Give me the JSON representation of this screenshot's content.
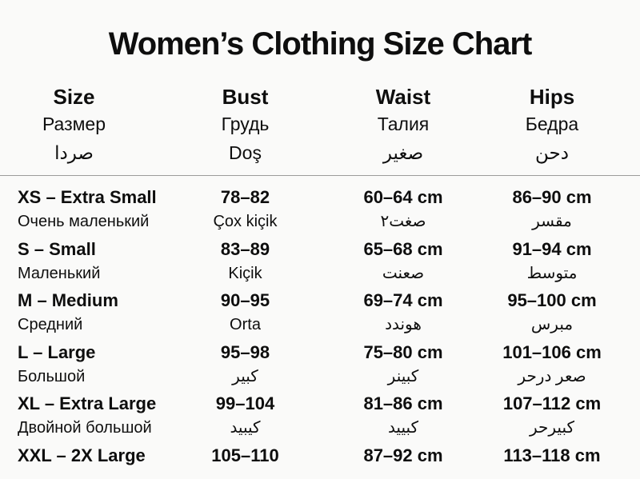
{
  "title": "Women’s Clothing Size Chart",
  "colors": {
    "background": "#fafaf9",
    "text": "#0e0e0e",
    "divider": "#9b9b9b"
  },
  "columns": [
    {
      "en": "Size",
      "ru": "Размер",
      "third": "صردا"
    },
    {
      "en": "Bust",
      "ru": "Грудь",
      "third": "Doş"
    },
    {
      "en": "Waist",
      "ru": "Талия",
      "third": "صغير"
    },
    {
      "en": "Hips",
      "ru": "Бедра",
      "third": "دحن"
    }
  ],
  "rows": [
    {
      "size": "XS – Extra Small",
      "size_sub": "Очень маленький",
      "bust": "78–82",
      "bust_sub": "Çox kiçik",
      "waist": "60–64 cm",
      "waist_sub": "صغت٢",
      "hips": "86–90 cm",
      "hips_sub": "مقسر"
    },
    {
      "size": "S – Small",
      "size_sub": "Маленький",
      "bust": "83–89",
      "bust_sub": "Kiçik",
      "waist": "65–68 cm",
      "waist_sub": "صعنت",
      "hips": "91–94 cm",
      "hips_sub": "متوسط"
    },
    {
      "size": "M – Medium",
      "size_sub": "Средний",
      "bust": "90–95",
      "bust_sub": "Orta",
      "waist": "69–74 cm",
      "waist_sub": "هوندد",
      "hips": "95–100 cm",
      "hips_sub": "مبرس"
    },
    {
      "size": "L – Large",
      "size_sub": "Большой",
      "bust": "95–98",
      "bust_sub": "كبير",
      "waist": "75–80 cm",
      "waist_sub": "كبينر",
      "hips": "101–106 cm",
      "hips_sub": "صعر درحر"
    },
    {
      "size": "XL – Extra Large",
      "size_sub": "Двойной большой",
      "bust": "99–104",
      "bust_sub": "كيبيد",
      "waist": "81–86 cm",
      "waist_sub": "كبييد",
      "hips": "107–112 cm",
      "hips_sub": "كبيرحر"
    },
    {
      "size": "XXL – 2X Large",
      "size_sub": "",
      "bust": "105–110",
      "bust_sub": "",
      "waist": "87–92 cm",
      "waist_sub": "",
      "hips": "113–118 cm",
      "hips_sub": ""
    }
  ]
}
